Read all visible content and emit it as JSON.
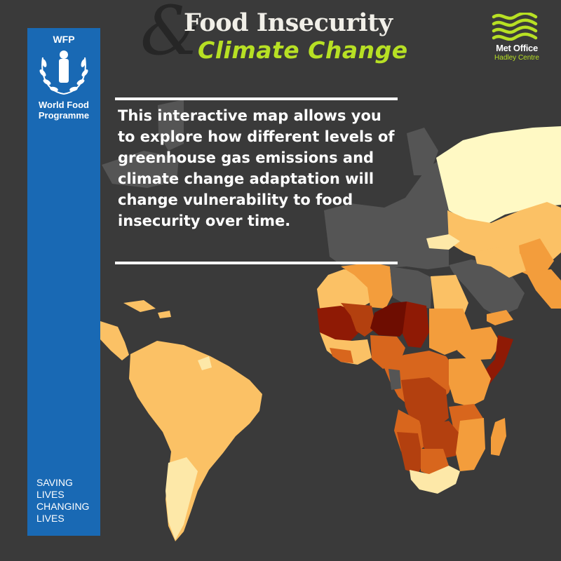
{
  "header": {
    "title_line1": "Food Insecurity",
    "title_ampersand": "&",
    "title_line2": "Climate Change"
  },
  "wfp": {
    "acronym": "WFP",
    "name_line1": "World Food",
    "name_line2": "Programme",
    "slogan": [
      "Saving",
      "Lives",
      "Changing",
      "Lives"
    ],
    "brand_color": "#1969b4"
  },
  "met_office": {
    "name": "Met Office",
    "subtitle": "Hadley Centre",
    "accent_color": "#b7e024"
  },
  "intro": {
    "text": "This interactive map allows you to explore how different levels of greenhouse gas emissions and climate change adaptation will change vulnerability to food insecurity over time."
  },
  "map": {
    "background_color": "#3a3a3a",
    "no_data_color": "#5a5a5a",
    "vulnerability_scale": [
      "#fff9c4",
      "#fde8a8",
      "#fbc165",
      "#f39d3c",
      "#d8661d",
      "#b3400f",
      "#8f1a05",
      "#6e0d01"
    ]
  }
}
